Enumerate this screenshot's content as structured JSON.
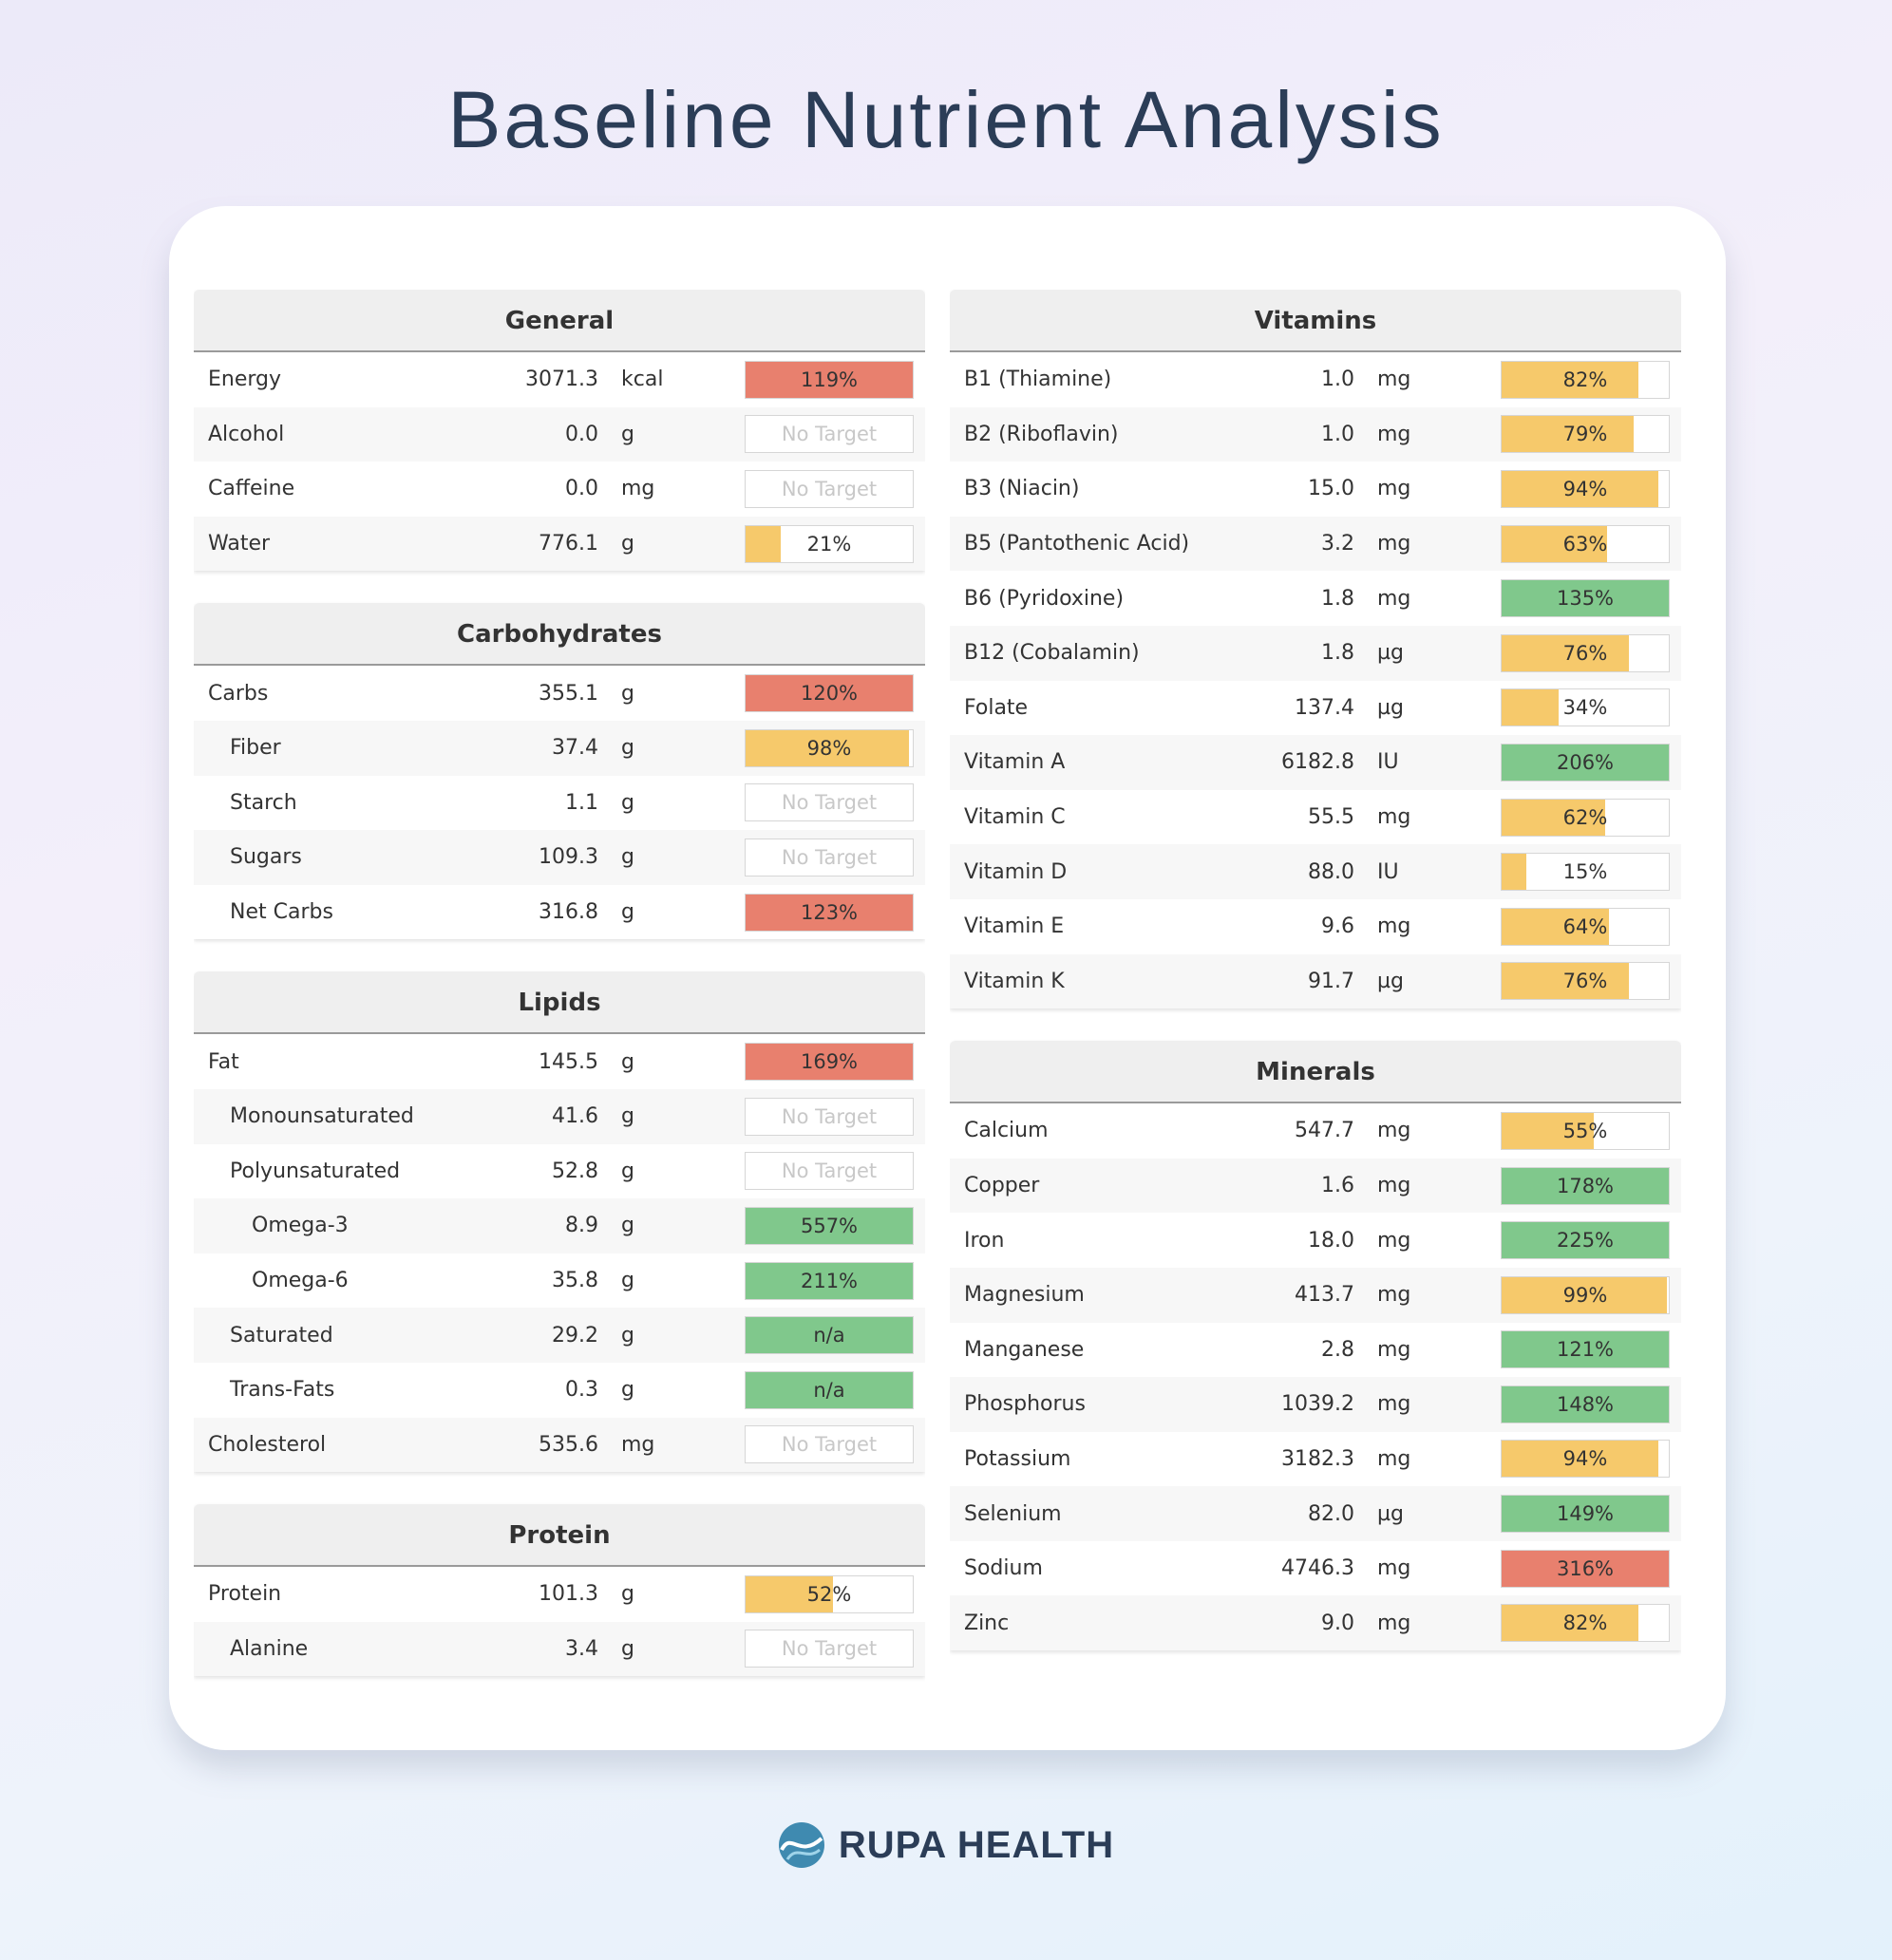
{
  "title": "Baseline Nutrient Analysis",
  "brand": "RUPA HEALTH",
  "colors": {
    "high": "#e8806e",
    "low": "#f6c96b",
    "ok": "#80c88c"
  },
  "columns": [
    {
      "sections": [
        {
          "title": "General",
          "rows": [
            {
              "name": "Energy",
              "amount": "3071.3",
              "unit": "kcal",
              "level": 0,
              "percent": 119,
              "percent_label": "119%",
              "status": "high"
            },
            {
              "name": "Alcohol",
              "amount": "0.0",
              "unit": "g",
              "level": 0,
              "percent_label": "No Target"
            },
            {
              "name": "Caffeine",
              "amount": "0.0",
              "unit": "mg",
              "level": 0,
              "percent_label": "No Target"
            },
            {
              "name": "Water",
              "amount": "776.1",
              "unit": "g",
              "level": 0,
              "percent": 21,
              "percent_label": "21%",
              "status": "low"
            }
          ]
        },
        {
          "title": "Carbohydrates",
          "rows": [
            {
              "name": "Carbs",
              "amount": "355.1",
              "unit": "g",
              "level": 0,
              "percent": 120,
              "percent_label": "120%",
              "status": "high"
            },
            {
              "name": "Fiber",
              "amount": "37.4",
              "unit": "g",
              "level": 1,
              "percent": 98,
              "percent_label": "98%",
              "status": "low"
            },
            {
              "name": "Starch",
              "amount": "1.1",
              "unit": "g",
              "level": 1,
              "percent_label": "No Target"
            },
            {
              "name": "Sugars",
              "amount": "109.3",
              "unit": "g",
              "level": 1,
              "percent_label": "No Target"
            },
            {
              "name": "Net Carbs",
              "amount": "316.8",
              "unit": "g",
              "level": 1,
              "percent": 123,
              "percent_label": "123%",
              "status": "high"
            }
          ]
        },
        {
          "title": "Lipids",
          "rows": [
            {
              "name": "Fat",
              "amount": "145.5",
              "unit": "g",
              "level": 0,
              "percent": 169,
              "percent_label": "169%",
              "status": "high"
            },
            {
              "name": "Monounsaturated",
              "amount": "41.6",
              "unit": "g",
              "level": 1,
              "percent_label": "No Target"
            },
            {
              "name": "Polyunsaturated",
              "amount": "52.8",
              "unit": "g",
              "level": 1,
              "percent_label": "No Target"
            },
            {
              "name": "Omega-3",
              "amount": "8.9",
              "unit": "g",
              "level": 2,
              "percent": 557,
              "percent_label": "557%",
              "status": "ok"
            },
            {
              "name": "Omega-6",
              "amount": "35.8",
              "unit": "g",
              "level": 2,
              "percent": 211,
              "percent_label": "211%",
              "status": "ok"
            },
            {
              "name": "Saturated",
              "amount": "29.2",
              "unit": "g",
              "level": 1,
              "percent_label": "n/a",
              "status": "ok"
            },
            {
              "name": "Trans-Fats",
              "amount": "0.3",
              "unit": "g",
              "level": 1,
              "percent_label": "n/a",
              "status": "ok"
            },
            {
              "name": "Cholesterol",
              "amount": "535.6",
              "unit": "mg",
              "level": 0,
              "percent_label": "No Target"
            }
          ]
        },
        {
          "title": "Protein",
          "rows": [
            {
              "name": "Protein",
              "amount": "101.3",
              "unit": "g",
              "level": 0,
              "percent": 52,
              "percent_label": "52%",
              "status": "low"
            },
            {
              "name": "Alanine",
              "amount": "3.4",
              "unit": "g",
              "level": 1,
              "percent_label": "No Target"
            }
          ]
        }
      ]
    },
    {
      "sections": [
        {
          "title": "Vitamins",
          "rows": [
            {
              "name": "B1 (Thiamine)",
              "amount": "1.0",
              "unit": "mg",
              "level": 0,
              "percent": 82,
              "percent_label": "82%",
              "status": "low"
            },
            {
              "name": "B2 (Riboflavin)",
              "amount": "1.0",
              "unit": "mg",
              "level": 0,
              "percent": 79,
              "percent_label": "79%",
              "status": "low"
            },
            {
              "name": "B3 (Niacin)",
              "amount": "15.0",
              "unit": "mg",
              "level": 0,
              "percent": 94,
              "percent_label": "94%",
              "status": "low"
            },
            {
              "name": "B5 (Pantothenic Acid)",
              "amount": "3.2",
              "unit": "mg",
              "level": 0,
              "percent": 63,
              "percent_label": "63%",
              "status": "low"
            },
            {
              "name": "B6 (Pyridoxine)",
              "amount": "1.8",
              "unit": "mg",
              "level": 0,
              "percent": 135,
              "percent_label": "135%",
              "status": "ok"
            },
            {
              "name": "B12 (Cobalamin)",
              "amount": "1.8",
              "unit": "µg",
              "level": 0,
              "percent": 76,
              "percent_label": "76%",
              "status": "low"
            },
            {
              "name": "Folate",
              "amount": "137.4",
              "unit": "µg",
              "level": 0,
              "percent": 34,
              "percent_label": "34%",
              "status": "low"
            },
            {
              "name": "Vitamin A",
              "amount": "6182.8",
              "unit": "IU",
              "level": 0,
              "percent": 206,
              "percent_label": "206%",
              "status": "ok"
            },
            {
              "name": "Vitamin C",
              "amount": "55.5",
              "unit": "mg",
              "level": 0,
              "percent": 62,
              "percent_label": "62%",
              "status": "low"
            },
            {
              "name": "Vitamin D",
              "amount": "88.0",
              "unit": "IU",
              "level": 0,
              "percent": 15,
              "percent_label": "15%",
              "status": "low"
            },
            {
              "name": "Vitamin E",
              "amount": "9.6",
              "unit": "mg",
              "level": 0,
              "percent": 64,
              "percent_label": "64%",
              "status": "low"
            },
            {
              "name": "Vitamin K",
              "amount": "91.7",
              "unit": "µg",
              "level": 0,
              "percent": 76,
              "percent_label": "76%",
              "status": "low"
            }
          ]
        },
        {
          "title": "Minerals",
          "rows": [
            {
              "name": "Calcium",
              "amount": "547.7",
              "unit": "mg",
              "level": 0,
              "percent": 55,
              "percent_label": "55%",
              "status": "low"
            },
            {
              "name": "Copper",
              "amount": "1.6",
              "unit": "mg",
              "level": 0,
              "percent": 178,
              "percent_label": "178%",
              "status": "ok"
            },
            {
              "name": "Iron",
              "amount": "18.0",
              "unit": "mg",
              "level": 0,
              "percent": 225,
              "percent_label": "225%",
              "status": "ok"
            },
            {
              "name": "Magnesium",
              "amount": "413.7",
              "unit": "mg",
              "level": 0,
              "percent": 99,
              "percent_label": "99%",
              "status": "low"
            },
            {
              "name": "Manganese",
              "amount": "2.8",
              "unit": "mg",
              "level": 0,
              "percent": 121,
              "percent_label": "121%",
              "status": "ok"
            },
            {
              "name": "Phosphorus",
              "amount": "1039.2",
              "unit": "mg",
              "level": 0,
              "percent": 148,
              "percent_label": "148%",
              "status": "ok"
            },
            {
              "name": "Potassium",
              "amount": "3182.3",
              "unit": "mg",
              "level": 0,
              "percent": 94,
              "percent_label": "94%",
              "status": "low"
            },
            {
              "name": "Selenium",
              "amount": "82.0",
              "unit": "µg",
              "level": 0,
              "percent": 149,
              "percent_label": "149%",
              "status": "ok"
            },
            {
              "name": "Sodium",
              "amount": "4746.3",
              "unit": "mg",
              "level": 0,
              "percent": 316,
              "percent_label": "316%",
              "status": "high"
            },
            {
              "name": "Zinc",
              "amount": "9.0",
              "unit": "mg",
              "level": 0,
              "percent": 82,
              "percent_label": "82%",
              "status": "low"
            }
          ]
        }
      ]
    }
  ]
}
